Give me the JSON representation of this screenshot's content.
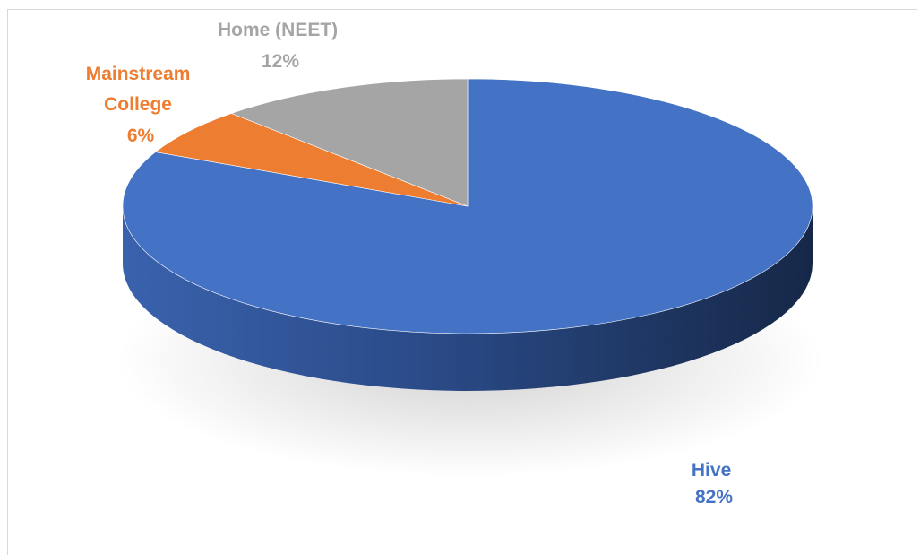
{
  "chart_data": {
    "type": "pie",
    "style": "3d",
    "slices": [
      {
        "category": "Hive",
        "value": 82,
        "value_label": "82%",
        "color": "#4472C4"
      },
      {
        "category": "Mainstream College",
        "value": 6,
        "value_label": "6%",
        "color": "#ED7D31"
      },
      {
        "category": "Home (NEET)",
        "value": 12,
        "value_label": "12%",
        "color": "#A5A5A5"
      }
    ],
    "legend": "none"
  }
}
